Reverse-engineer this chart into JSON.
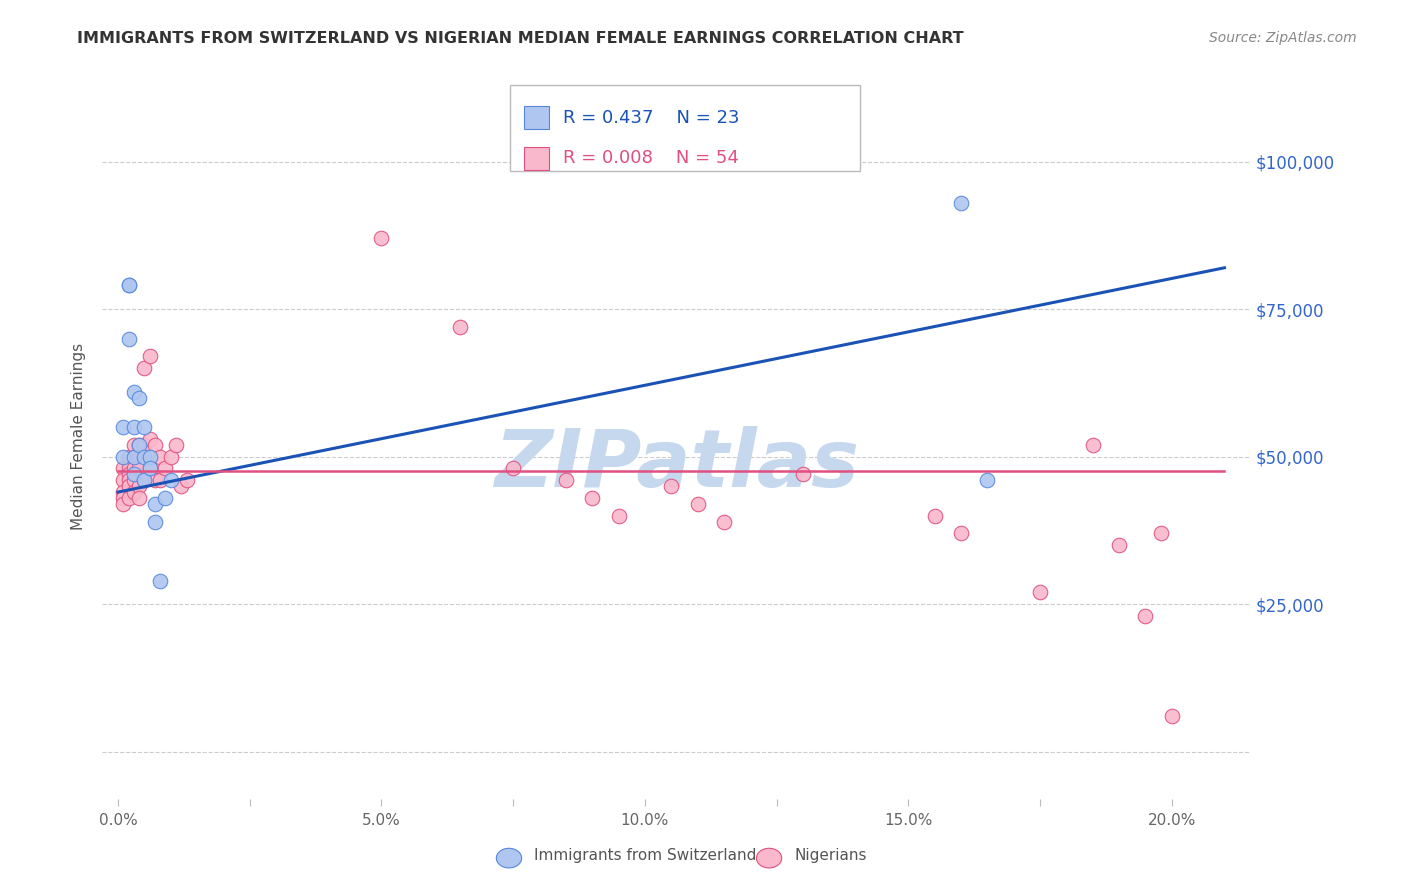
{
  "title": "IMMIGRANTS FROM SWITZERLAND VS NIGERIAN MEDIAN FEMALE EARNINGS CORRELATION CHART",
  "source": "Source: ZipAtlas.com",
  "xlabel_ticks": [
    "0.0%",
    "",
    "5.0%",
    "",
    "10.0%",
    "",
    "15.0%",
    "",
    "20.0%"
  ],
  "xlabel_tick_vals": [
    0.0,
    0.025,
    0.05,
    0.075,
    0.1,
    0.125,
    0.15,
    0.175,
    0.2
  ],
  "ylabel": "Median Female Earnings",
  "ylabel_ticks": [
    0,
    25000,
    50000,
    75000,
    100000
  ],
  "ylabel_tick_labels": [
    "",
    "$25,000",
    "$50,000",
    "$75,000",
    "$100,000"
  ],
  "xlim": [
    -0.003,
    0.215
  ],
  "ylim": [
    -8000,
    115000
  ],
  "watermark": "ZIPatlas",
  "legend_blue_r": "R = 0.437",
  "legend_blue_n": "N = 23",
  "legend_pink_r": "R = 0.008",
  "legend_pink_n": "N = 54",
  "legend_label_blue": "Immigrants from Switzerland",
  "legend_label_pink": "Nigerians",
  "blue_x": [
    0.001,
    0.001,
    0.002,
    0.002,
    0.002,
    0.003,
    0.003,
    0.003,
    0.003,
    0.004,
    0.004,
    0.005,
    0.005,
    0.005,
    0.006,
    0.006,
    0.007,
    0.007,
    0.008,
    0.009,
    0.01,
    0.16,
    0.165
  ],
  "blue_y": [
    55000,
    50000,
    79000,
    79000,
    70000,
    61000,
    55000,
    50000,
    47000,
    60000,
    52000,
    55000,
    50000,
    46000,
    50000,
    48000,
    42000,
    39000,
    29000,
    43000,
    46000,
    93000,
    46000
  ],
  "pink_x": [
    0.001,
    0.001,
    0.001,
    0.001,
    0.001,
    0.002,
    0.002,
    0.002,
    0.002,
    0.002,
    0.002,
    0.003,
    0.003,
    0.003,
    0.003,
    0.003,
    0.004,
    0.004,
    0.004,
    0.004,
    0.004,
    0.005,
    0.005,
    0.005,
    0.006,
    0.006,
    0.006,
    0.007,
    0.007,
    0.008,
    0.008,
    0.009,
    0.01,
    0.011,
    0.012,
    0.013,
    0.05,
    0.065,
    0.075,
    0.085,
    0.09,
    0.095,
    0.105,
    0.11,
    0.115,
    0.13,
    0.155,
    0.16,
    0.175,
    0.185,
    0.19,
    0.195,
    0.198,
    0.2
  ],
  "pink_y": [
    48000,
    46000,
    44000,
    43000,
    42000,
    50000,
    48000,
    47000,
    46000,
    45000,
    43000,
    52000,
    50000,
    48000,
    46000,
    44000,
    52000,
    50000,
    48000,
    45000,
    43000,
    65000,
    52000,
    46000,
    67000,
    53000,
    48000,
    52000,
    46000,
    50000,
    46000,
    48000,
    50000,
    52000,
    45000,
    46000,
    87000,
    72000,
    48000,
    46000,
    43000,
    40000,
    45000,
    42000,
    39000,
    47000,
    40000,
    37000,
    27000,
    52000,
    35000,
    23000,
    37000,
    6000
  ],
  "blue_line_x0": 0.0,
  "blue_line_y0": 44000,
  "blue_line_x1": 0.21,
  "blue_line_y1": 82000,
  "pink_line_x0": 0.0,
  "pink_line_y0": 47500,
  "pink_line_x1": 0.21,
  "pink_line_y1": 47500,
  "blue_line_color": "#1a52b5",
  "pink_line_color": "#e05080",
  "blue_scatter_facecolor": "#aec6f0",
  "blue_scatter_edgecolor": "#5588dd",
  "pink_scatter_facecolor": "#f9b8cb",
  "pink_scatter_edgecolor": "#e05080",
  "grid_color": "#cccccc",
  "watermark_color": "#c5d8ee",
  "right_label_color": "#3366cc",
  "title_color": "#333333",
  "source_color": "#888888",
  "background_color": "#ffffff"
}
